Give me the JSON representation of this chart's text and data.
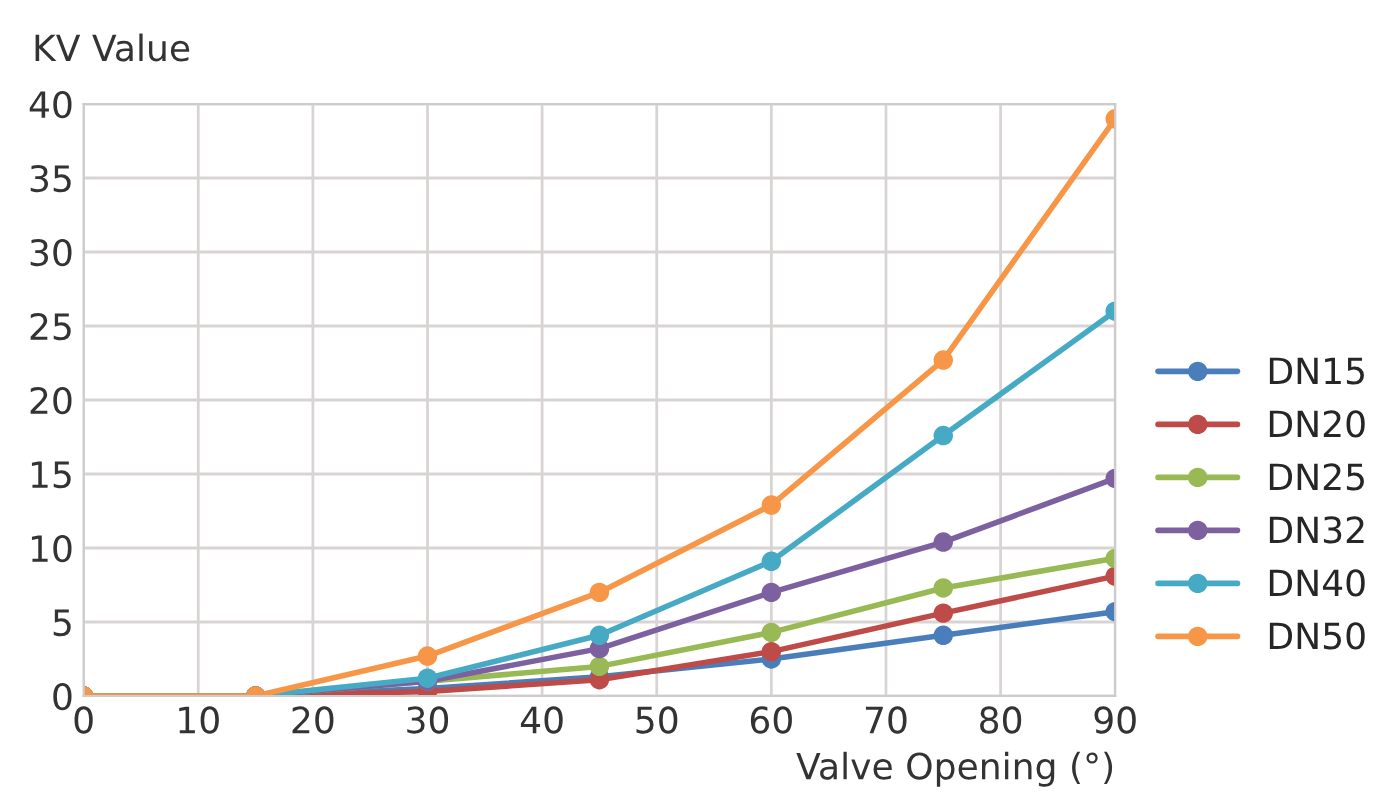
{
  "chart_data": {
    "type": "line",
    "xlabel": "Valve Opening (°)",
    "ylabel": "KV Value",
    "x": [
      0,
      15,
      30,
      45,
      60,
      75,
      90
    ],
    "xlim": [
      0,
      90
    ],
    "xticks": [
      0,
      10,
      20,
      30,
      40,
      50,
      60,
      70,
      80,
      90
    ],
    "ylim": [
      0,
      40
    ],
    "yticks": [
      0,
      5,
      10,
      15,
      20,
      25,
      30,
      35,
      40
    ],
    "grid": true,
    "legend": "right",
    "marker": "circle",
    "line_style": "solid",
    "series": [
      {
        "name": "DN15",
        "color": "#4a7ebb",
        "values": [
          0,
          0,
          0.5,
          1.3,
          2.5,
          4.1,
          5.7
        ]
      },
      {
        "name": "DN20",
        "color": "#be4b48",
        "values": [
          0,
          0,
          0.3,
          1.1,
          3.0,
          5.6,
          8.1
        ]
      },
      {
        "name": "DN25",
        "color": "#98b954",
        "values": [
          0,
          0,
          1.0,
          2.0,
          4.3,
          7.3,
          9.3
        ]
      },
      {
        "name": "DN32",
        "color": "#7d60a0",
        "values": [
          0,
          0,
          1.0,
          3.2,
          7.0,
          10.4,
          14.7
        ]
      },
      {
        "name": "DN40",
        "color": "#46aac5",
        "values": [
          0,
          0,
          1.2,
          4.1,
          9.1,
          17.6,
          26.0
        ]
      },
      {
        "name": "DN50",
        "color": "#f79646",
        "values": [
          0,
          0,
          2.7,
          7.0,
          12.9,
          22.7,
          39.0
        ]
      }
    ]
  }
}
